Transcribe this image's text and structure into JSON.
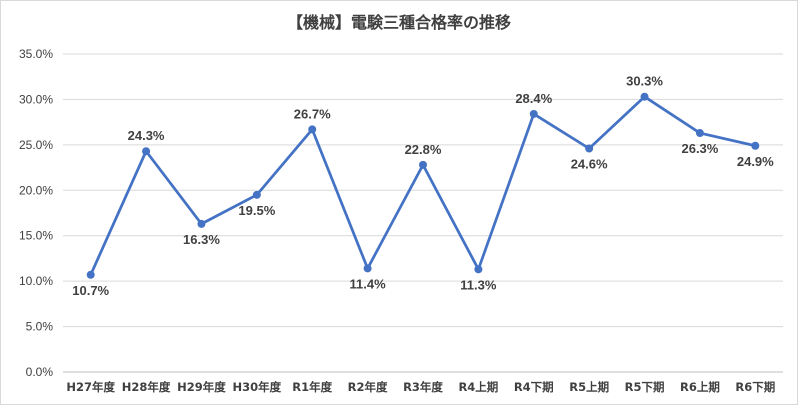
{
  "chart_data": {
    "type": "line",
    "title": "【機械】電験三種合格率の推移",
    "categories": [
      "H27年度",
      "H28年度",
      "H29年度",
      "H30年度",
      "R1年度",
      "R2年度",
      "R3年度",
      "R4上期",
      "R4下期",
      "R5上期",
      "R5下期",
      "R6上期",
      "R6下期"
    ],
    "series": [
      {
        "values": [
          10.7,
          24.3,
          16.3,
          19.5,
          26.7,
          11.4,
          22.8,
          11.3,
          28.4,
          24.6,
          30.3,
          26.3,
          24.9
        ],
        "data_labels": [
          "10.7%",
          "24.3%",
          "16.3%",
          "19.5%",
          "26.7%",
          "11.4%",
          "22.8%",
          "11.3%",
          "28.4%",
          "24.6%",
          "30.3%",
          "26.3%",
          "24.9%"
        ]
      }
    ],
    "ylim": [
      0,
      35
    ],
    "yticks": [
      0,
      5,
      10,
      15,
      20,
      25,
      30,
      35
    ],
    "ytick_labels": [
      "0.0%",
      "5.0%",
      "10.0%",
      "15.0%",
      "20.0%",
      "25.0%",
      "30.0%",
      "35.0%"
    ],
    "grid": true,
    "legend": "none",
    "colors": {
      "line": "#4472c4",
      "grid": "#d9d9d9",
      "text": "#404040"
    }
  }
}
